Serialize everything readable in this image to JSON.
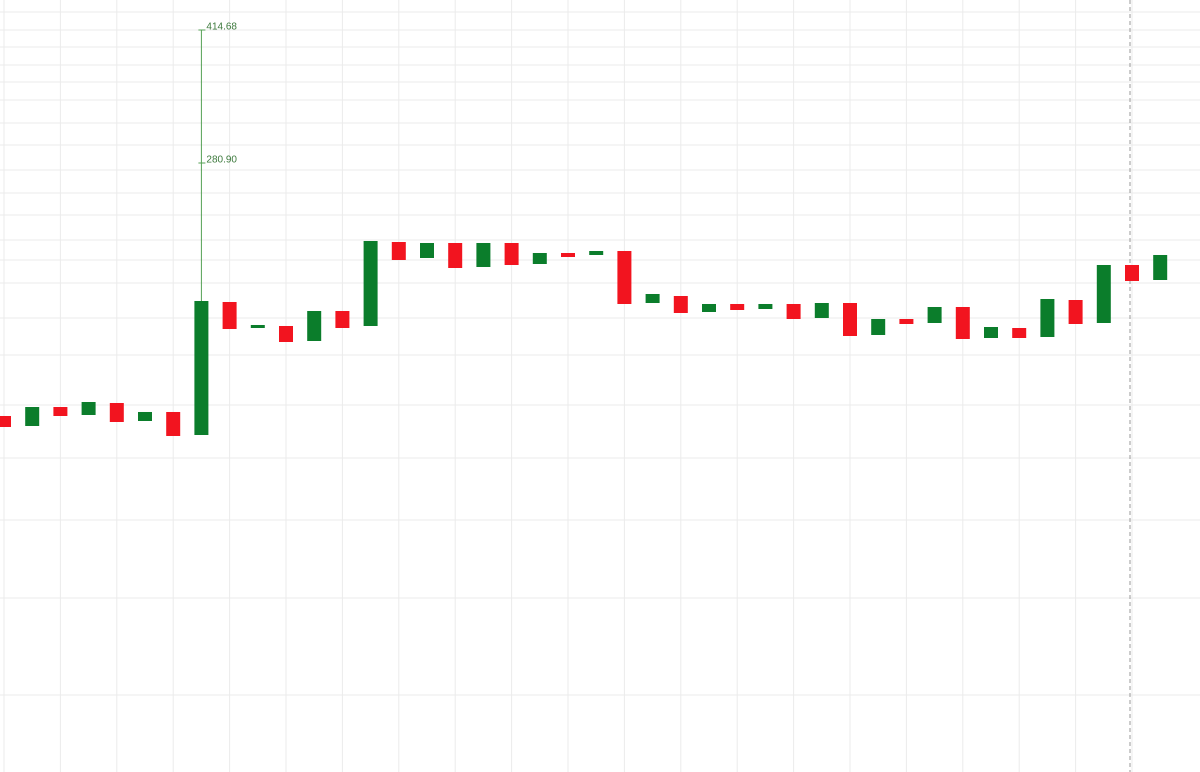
{
  "chart_data": {
    "type": "candlestick",
    "categories": [
      null,
      null,
      null,
      null,
      null,
      null,
      null,
      null,
      null,
      null,
      null,
      null,
      null,
      null,
      null,
      null,
      null,
      null,
      null,
      null,
      null,
      null,
      null,
      null,
      null,
      null,
      null,
      null,
      null,
      null,
      null,
      null,
      null,
      null,
      null,
      null,
      null,
      null,
      null,
      null,
      null,
      null
    ],
    "open": [
      26.42,
      16.36,
      35.47,
      27.43,
      39.5,
      21.39,
      30.45,
      7.31,
      141.09,
      114.94,
      116.95,
      101.86,
      132.04,
      116.95,
      201.44,
      185.35,
      200.44,
      176.3,
      200.44,
      179.31,
      190.38,
      188.37,
      192.39,
      140.08,
      147.13,
      131.03,
      139.08,
      134.05,
      139.08,
      125.0,
      140.08,
      107.9,
      123.99,
      119.97,
      136.06,
      104.88,
      114.94,
      105.89,
      143.1,
      119.97,
      178.31,
      163.22
    ],
    "close": [
      15.36,
      35.47,
      26.42,
      40.5,
      20.39,
      30.45,
      6.31,
      142.1,
      113.93,
      117.96,
      100.86,
      132.04,
      114.94,
      202.45,
      183.34,
      200.44,
      175.29,
      200.44,
      178.31,
      190.38,
      186.35,
      192.39,
      139.08,
      149.14,
      130.03,
      139.08,
      133.04,
      139.08,
      123.99,
      140.08,
      106.89,
      123.99,
      118.96,
      136.06,
      103.87,
      115.94,
      104.88,
      144.11,
      118.96,
      178.31,
      162.21,
      188.37
    ],
    "high": [
      null,
      null,
      null,
      null,
      null,
      null,
      null,
      414.68,
      null,
      null,
      null,
      null,
      null,
      null,
      null,
      null,
      null,
      null,
      null,
      null,
      null,
      null,
      null,
      null,
      null,
      null,
      null,
      null,
      null,
      null,
      null,
      null,
      null,
      null,
      null,
      null,
      null,
      null,
      null,
      null,
      null,
      null
    ],
    "wick_labels": [
      414.68,
      {
        "value": 280.9,
        "label": "280.90"
      }
    ],
    "up_color": "#0b7d2b",
    "down_color": "#f2141f",
    "wick_color": "#55a055",
    "ylim": [
      -331.67,
      444.86
    ],
    "grid": true
  }
}
